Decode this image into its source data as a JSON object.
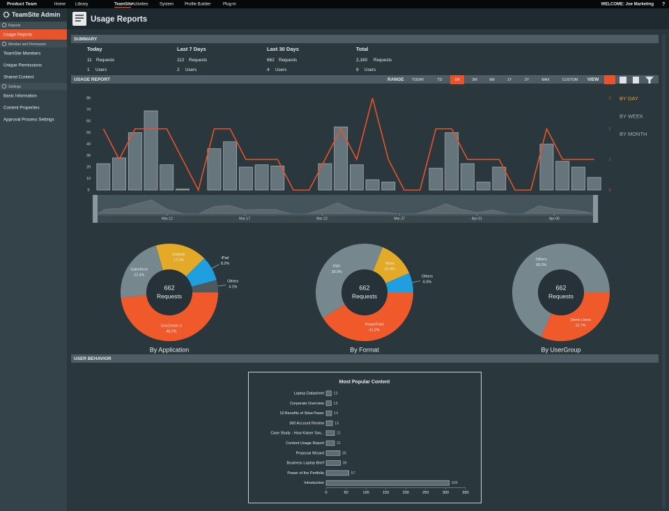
{
  "top_nav": {
    "brand": "Product Team",
    "items": [
      "Home",
      "Library",
      "TeamSite",
      "Activities",
      "System",
      "Profile Builder",
      "Plug-in"
    ],
    "active_item": 2,
    "welcome": "WELCOME: Joe Marketing",
    "help": "?"
  },
  "sidebar": {
    "title": "TeamSite Admin",
    "active_item": "0.0",
    "sections": [
      {
        "name": "Reports",
        "items": [
          "Usage Reports"
        ]
      },
      {
        "name": "Member and Permission",
        "items": [
          "TeamSite Members",
          "Unique Permissions",
          "Shared Content"
        ]
      },
      {
        "name": "Settings",
        "items": [
          "Basic Information",
          "Content Properties",
          "Approval Process Settings"
        ]
      }
    ]
  },
  "header": {
    "title": "Usage Reports"
  },
  "summary": {
    "title": "SUMMARY",
    "requests_label": "Requests",
    "users_label": "Users",
    "columns": [
      {
        "period": "Today",
        "requests": 11,
        "users": 1
      },
      {
        "period": "Last 7 Days",
        "requests": 112,
        "users": 2
      },
      {
        "period": "Last 30 Days",
        "requests": 662,
        "users": 4
      },
      {
        "period": "Total",
        "requests": "2,160",
        "users": 9
      }
    ]
  },
  "usage_report": {
    "title": "USAGE REPORT",
    "range_label": "RANGE",
    "ranges": [
      "TODAY",
      "TD",
      "1M",
      "3M",
      "6M",
      "1Y",
      "2Y",
      "MAX",
      "CUSTOM"
    ],
    "active_range": 2,
    "view_label": "VIEW",
    "views": [
      "BY DAY",
      "BY WEEK",
      "BY MONTH"
    ],
    "active_view": 0
  },
  "behavior": {
    "title": "USER BEHAVIOR"
  },
  "chart_data": [
    {
      "type": "combo",
      "series": [
        {
          "type": "bar",
          "color": "#66757c",
          "values": [
            23,
            28,
            50,
            69,
            22,
            1,
            0,
            36,
            42,
            20,
            22,
            21,
            0,
            0,
            23,
            55,
            22,
            9,
            7,
            0,
            0,
            19,
            50,
            23,
            7,
            20,
            0,
            0,
            40,
            25,
            20,
            11
          ]
        },
        {
          "type": "line",
          "axis": "y2",
          "color": "#e8532a",
          "values": [
            2,
            1,
            2,
            2,
            2,
            1,
            0,
            2,
            2,
            1,
            1,
            1,
            0,
            0,
            1,
            2,
            1,
            3,
            1,
            0,
            0,
            2,
            2,
            1,
            1,
            1,
            0,
            0,
            2,
            1,
            1,
            1
          ]
        }
      ],
      "ylim": [
        0,
        80
      ],
      "yticks": [
        0,
        10,
        20,
        30,
        40,
        50,
        60,
        70,
        80
      ],
      "y2lim": [
        0,
        3
      ],
      "y2ticks": [
        0,
        1,
        2,
        3
      ],
      "navigator_ticks": [
        {
          "value": 4,
          "label": "Mar-12"
        },
        {
          "value": 9,
          "label": "Mar-17"
        },
        {
          "value": 14,
          "label": "Mar-22"
        },
        {
          "value": 19,
          "label": "Mar-27"
        },
        {
          "value": 24,
          "label": "Apr-01"
        },
        {
          "value": 29,
          "label": "Apr-06"
        }
      ]
    },
    {
      "type": "pie",
      "title": "By Application",
      "center_value": 662,
      "center_label": "Requests",
      "categories": [
        "DocCenter-3",
        "Salesforce",
        "Outlook",
        "iPad",
        "Others"
      ],
      "values": [
        48.2,
        22.4,
        17.1,
        8.2,
        4.1
      ],
      "value_labels": [
        "48.2%",
        "22.4%",
        "17.1%",
        "8.2%",
        "4.1%"
      ],
      "colors": [
        "#f05a2a",
        "#76878e",
        "#e2aa26",
        "#1f9ee0",
        "#4c5a60"
      ]
    },
    {
      "type": "pie",
      "title": "By Format",
      "center_value": 662,
      "center_label": "Requests",
      "categories": [
        "PowerPoint",
        "PDF",
        "Word",
        "Others"
      ],
      "values": [
        41.2,
        39.9,
        12.4,
        6.5
      ],
      "value_labels": [
        "41.2%",
        "39.9%",
        "12.4%",
        "6.5%"
      ],
      "colors": [
        "#f05a2a",
        "#76878e",
        "#e2aa26",
        "#1f9ee0"
      ]
    },
    {
      "type": "pie",
      "title": "By UserGroup",
      "center_value": 662,
      "center_label": "Requests",
      "categories": [
        "Demo Users",
        "Others"
      ],
      "values": [
        31.7,
        68.3
      ],
      "value_labels": [
        "31.7%",
        "68.3%"
      ],
      "colors": [
        "#f05a2a",
        "#76878e"
      ]
    },
    {
      "type": "hbar",
      "title": "Most Popular Content",
      "color": "#5d6b72",
      "categories": [
        "Laptop Datasheet",
        "Corporate Overview",
        "10 Benefits of SilverTower",
        "360 Account Review",
        "Case Study - How Kaiser Sav...",
        "Content Usage Report",
        "Proposal Wizard",
        "Business Laptop Brief",
        "Power of the Portfolio",
        "Introduction"
      ],
      "values": [
        13,
        13,
        14,
        16,
        21,
        21,
        35,
        36,
        57,
        309
      ],
      "xlim": [
        0,
        350
      ],
      "xticks": [
        0,
        50,
        100,
        150,
        200,
        250,
        300,
        350
      ]
    }
  ]
}
